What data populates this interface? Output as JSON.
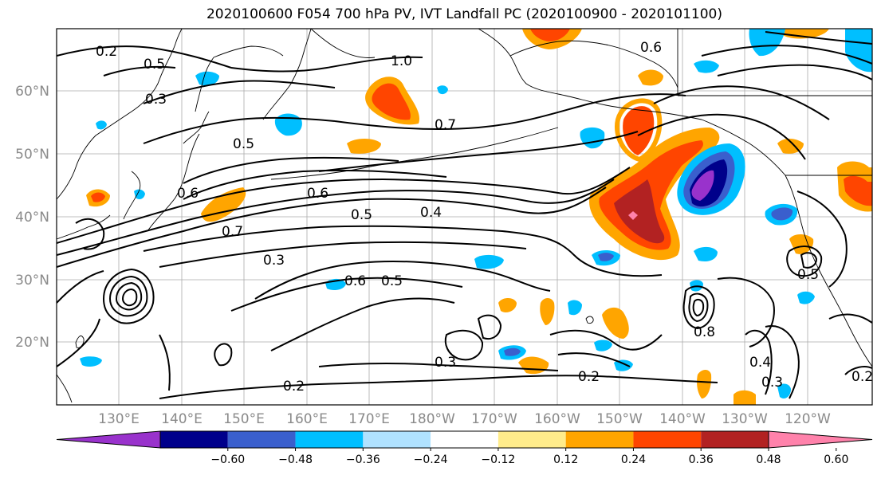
{
  "title": "2020100600 F054 700 hPa PV, IVT Landfall PC (2020100900 - 2020101100)",
  "latitude_labels": [
    "60°N",
    "50°N",
    "40°N",
    "30°N",
    "20°N"
  ],
  "longitude_labels": [
    "130°E",
    "140°E",
    "150°E",
    "160°E",
    "170°E",
    "180°W",
    "170°W",
    "160°W",
    "150°W",
    "140°W",
    "130°W",
    "120°W"
  ],
  "colorbar": {
    "ticks": [
      "−0.60",
      "−0.48",
      "−0.36",
      "−0.24",
      "−0.12",
      "0.12",
      "0.24",
      "0.36",
      "0.48",
      "0.60"
    ],
    "colors": [
      "#9932cc",
      "#00008b",
      "#3a5fcd",
      "#00bfff",
      "#b0e2ff",
      "#ffffff",
      "#ffec8b",
      "#ffa500",
      "#ff4500",
      "#b22222",
      "#ff82ab"
    ]
  },
  "contour_labels": [
    {
      "id": "c1",
      "text": "0.7"
    },
    {
      "id": "c2",
      "text": "0.6"
    },
    {
      "id": "c3",
      "text": "0.5"
    },
    {
      "id": "c4",
      "text": "0.4"
    },
    {
      "id": "c5",
      "text": "0.3"
    },
    {
      "id": "c6",
      "text": "0.6"
    },
    {
      "id": "c7",
      "text": "0.5"
    },
    {
      "id": "c8",
      "text": "0.3"
    },
    {
      "id": "c9",
      "text": "0.2"
    },
    {
      "id": "c10",
      "text": "0.2"
    },
    {
      "id": "c11",
      "text": "0.7"
    },
    {
      "id": "c12",
      "text": "0.6"
    },
    {
      "id": "c13",
      "text": "1.0"
    },
    {
      "id": "c14",
      "text": "0.6"
    },
    {
      "id": "c15",
      "text": "0.5"
    },
    {
      "id": "c16",
      "text": "0.3"
    },
    {
      "id": "c17",
      "text": "0.5"
    },
    {
      "id": "c18",
      "text": "0.2"
    },
    {
      "id": "c19",
      "text": "0.4"
    },
    {
      "id": "c20",
      "text": "0.3"
    },
    {
      "id": "c21",
      "text": "0.2"
    },
    {
      "id": "c22",
      "text": "0.5"
    },
    {
      "id": "c23",
      "text": "0.8"
    }
  ]
}
